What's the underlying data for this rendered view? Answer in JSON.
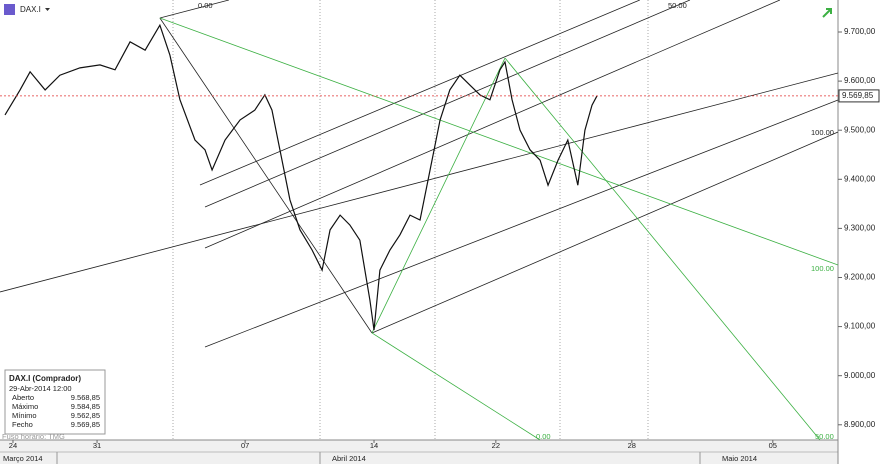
{
  "header": {
    "symbol": "DAX.I"
  },
  "chart_data": {
    "type": "line",
    "x": [
      0.17,
      0.68,
      1.02,
      1.53,
      2.03,
      2.71,
      3.39,
      3.9,
      4.41,
      4.92,
      5.42,
      5.76,
      6.1,
      6.61,
      6.95,
      7.19,
      7.63,
      8.14,
      8.64,
      8.98,
      9.22,
      9.49,
      9.83,
      10.17,
      10.58,
      10.92,
      11.19,
      11.53,
      11.86,
      12.2,
      12.54,
      12.68,
      12.88,
      13.22,
      13.56,
      13.9,
      14.24,
      14.58,
      14.92,
      15.25,
      15.59,
      15.93,
      16.27,
      16.61,
      16.95,
      17.12,
      17.36,
      17.63,
      17.97,
      18.31,
      18.58,
      18.92,
      19.25,
      19.59,
      19.83,
      20.07,
      20.24
    ],
    "series": [
      {
        "name": "DAX.I",
        "color": "#111111",
        "values": [
          9531,
          9582,
          9619,
          9582,
          9612,
          9627,
          9633,
          9623,
          9680,
          9663,
          9714,
          9653,
          9562,
          9480,
          9460,
          9419,
          9480,
          9521,
          9541,
          9572,
          9541,
          9460,
          9358,
          9297,
          9256,
          9215,
          9297,
          9327,
          9307,
          9276,
          9154,
          9093,
          9215,
          9256,
          9287,
          9327,
          9317,
          9419,
          9521,
          9582,
          9612,
          9592,
          9572,
          9562,
          9623,
          9639,
          9562,
          9500,
          9460,
          9439,
          9388,
          9439,
          9480,
          9388,
          9500,
          9551,
          9570
        ]
      }
    ],
    "xlim": [
      0,
      28.41
    ],
    "xticks": [
      {
        "value": 0.44,
        "label": "24"
      },
      {
        "value": 3.29,
        "label": "31"
      },
      {
        "value": 8.31,
        "label": "07"
      },
      {
        "value": 12.68,
        "label": "14"
      },
      {
        "value": 16.81,
        "label": "22"
      },
      {
        "value": 21.42,
        "label": "28"
      },
      {
        "value": 26.2,
        "label": "05"
      }
    ],
    "months": [
      "Março 2014",
      "Abril 2014",
      "Maio 2014"
    ],
    "ylim": [
      8869,
      9765.2
    ],
    "yticks": [
      {
        "value": 9700,
        "label": "9.700,00"
      },
      {
        "value": 9600,
        "label": "9.600,00"
      },
      {
        "value": 9500,
        "label": "9.500,00"
      },
      {
        "value": 9400,
        "label": "9.400,00"
      },
      {
        "value": 9300,
        "label": "9.300,00"
      },
      {
        "value": 9200,
        "label": "9.200,00"
      },
      {
        "value": 9100,
        "label": "9.100,00"
      },
      {
        "value": 9000,
        "label": "9.000,00"
      },
      {
        "value": 8900,
        "label": "8.900,00"
      }
    ],
    "last_price": {
      "value": 9569.85,
      "label": "9.569,85",
      "color": "#e03030"
    },
    "lines": [
      {
        "color": "#222222",
        "points": [
          5.42,
          9728.5,
          7.76,
          9765.2
        ]
      },
      {
        "color": "#222222",
        "points": [
          6.78,
          9388.4,
          21.69,
          9765.2
        ]
      },
      {
        "color": "#222222",
        "points": [
          6.95,
          9343.6,
          23.39,
          9765.2
        ]
      },
      {
        "color": "#222222",
        "points": [
          6.95,
          9260.1,
          26.44,
          9765.2
        ]
      },
      {
        "color": "#222222",
        "points": [
          0,
          9170.5,
          28.41,
          9616.5
        ]
      },
      {
        "color": "#222222",
        "points": [
          6.95,
          9058.4,
          28.41,
          9561.5
        ]
      },
      {
        "color": "#222222",
        "points": [
          12.61,
          9087,
          28.41,
          9496.3
        ]
      },
      {
        "color": "#222222",
        "points": [
          5.42,
          9728.5,
          12.61,
          9087
        ]
      },
      {
        "color": "#3cb043",
        "points": [
          5.42,
          9728.5,
          28.41,
          9225.4
        ]
      },
      {
        "color": "#3cb043",
        "points": [
          12.61,
          9087,
          18.31,
          8869
        ]
      },
      {
        "color": "#3cb043",
        "points": [
          17.12,
          9647,
          27.8,
          8869
        ]
      },
      {
        "color": "#3cb043",
        "points": [
          12.61,
          9087,
          17.12,
          9647
        ]
      }
    ],
    "annotations": [
      "0.00",
      "50.00",
      "100.00",
      "100.00",
      "0.00",
      "50.00"
    ]
  },
  "info": {
    "title": "DAX.I (Comprador)",
    "datetime": "29-Abr-2014 12:00",
    "rows": [
      [
        "Aberto",
        "9.568,85"
      ],
      [
        "Máximo",
        "9.584,85"
      ],
      [
        "Mínimo",
        "9.562,85"
      ],
      [
        "Fecho",
        "9.569,85"
      ]
    ],
    "timezone": "Fuso horário: TMG"
  }
}
